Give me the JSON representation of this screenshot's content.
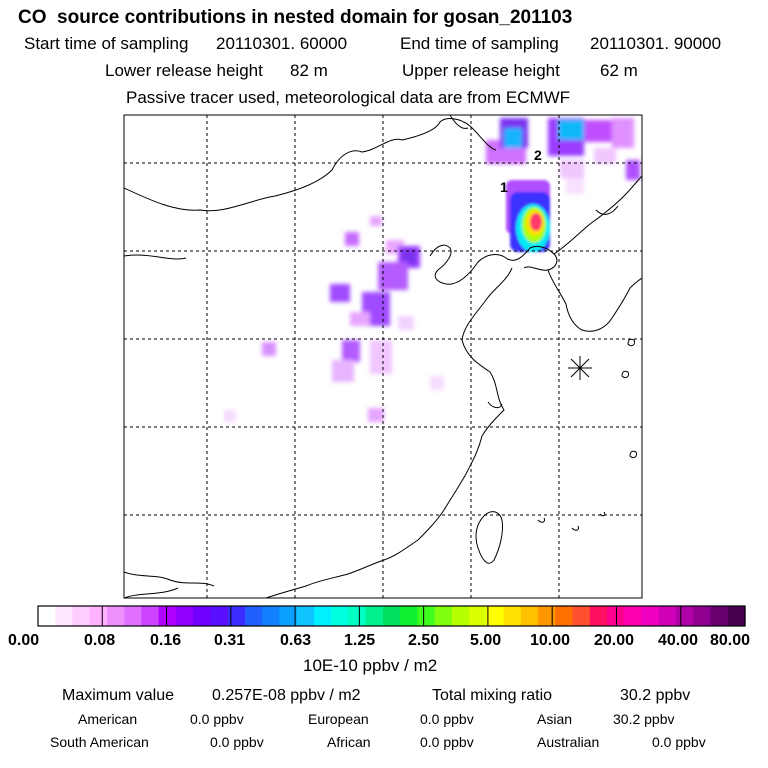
{
  "header": {
    "title": "CO  source contributions in nested domain for gosan_201103",
    "start_label": "Start time of sampling",
    "start_value": "20110301. 60000",
    "end_label": "End time of sampling",
    "end_value": "20110301. 90000",
    "lower_label": "Lower release height",
    "lower_value": "82 m",
    "upper_label": "Upper release height",
    "upper_value": "62 m",
    "note": "Passive tracer used, meteorological data are from ECMWF"
  },
  "map": {
    "release_markers": [
      "1",
      "2"
    ],
    "receptor_symbol": "star-burst"
  },
  "colorbar": {
    "unit": "10E-10 ppbv / m2",
    "ticks": [
      "0.00",
      "0.08",
      "0.16",
      "0.31",
      "0.63",
      "1.25",
      "2.50",
      "5.00",
      "10.00",
      "20.00",
      "40.00",
      "80.00"
    ],
    "colors": [
      "#ffffff",
      "#ffe6ff",
      "#ffccff",
      "#ffb2ff",
      "#f090ff",
      "#e070ff",
      "#cc44ff",
      "#b000ff",
      "#9000ff",
      "#7000ff",
      "#5a10ff",
      "#3c2cff",
      "#2060ff",
      "#1080ff",
      "#0aa0ff",
      "#10c4ff",
      "#00f0ff",
      "#00ffe0",
      "#00ffc0",
      "#00f090",
      "#00e060",
      "#10f030",
      "#40ff20",
      "#80ff10",
      "#b4ff00",
      "#dcff00",
      "#ffff00",
      "#ffe000",
      "#ffc000",
      "#ff9800",
      "#ff7000",
      "#ff5030",
      "#ff1060",
      "#ff0090",
      "#ff00b0",
      "#f000c0",
      "#d000b8",
      "#b000a8",
      "#900090",
      "#6a0070",
      "#4a0050"
    ]
  },
  "stats": {
    "max_label": "Maximum value",
    "max_value": "0.257E-08 ppbv / m2",
    "total_label": "Total mixing ratio",
    "total_value": "30.2 ppbv"
  },
  "regions": [
    {
      "name": "American",
      "value": "0.0 ppbv"
    },
    {
      "name": "European",
      "value": "0.0 ppbv"
    },
    {
      "name": "Asian",
      "value": "30.2 ppbv"
    },
    {
      "name": "South American",
      "value": "0.0 ppbv"
    },
    {
      "name": "African",
      "value": "0.0 ppbv"
    },
    {
      "name": "Australian",
      "value": "0.0 ppbv"
    }
  ]
}
